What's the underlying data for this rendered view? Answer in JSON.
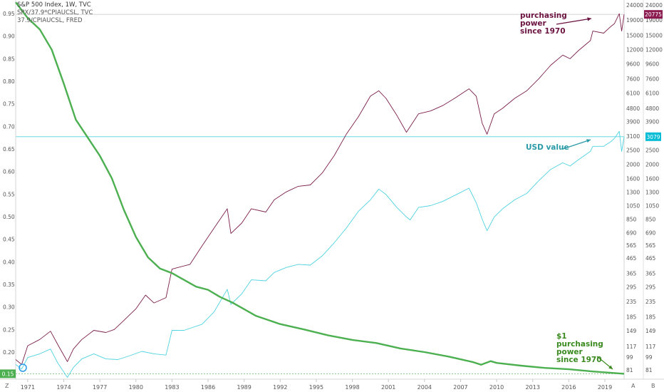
{
  "legend": {
    "line1": "S&P 500 Index, 1W, TVC",
    "line2": "SPX/37.9*CPIAUCSL, TVC",
    "line3": "37.9/CPIAUCSL, FRED"
  },
  "annotations": {
    "purchasing_power": [
      "purchasing",
      "power",
      "since 1970"
    ],
    "usd_value": "USD value",
    "dollar_pp": [
      "$1",
      "purchasing",
      "power",
      "since 1970"
    ]
  },
  "corner": {
    "left": "Z",
    "axis_a": "A",
    "axis_b": "B"
  },
  "colors": {
    "spx": "#7b1f4a",
    "real": "#4fd3e0",
    "dollar": "#4caf50",
    "spx_badge": "#8b1a4f",
    "real_badge": "#00bcd4",
    "dollar_badge": "#4caf50"
  },
  "chart_data": {
    "type": "line",
    "x_ticks": [
      "1971",
      "1974",
      "1977",
      "1980",
      "1983",
      "1986",
      "1989",
      "1992",
      "1995",
      "1998",
      "2001",
      "2004",
      "2007",
      "2010",
      "2013",
      "2016",
      "2019"
    ],
    "x_range": [
      1970.0,
      2020.6
    ],
    "left_axis": {
      "ticks": [
        "0.95",
        "0.90",
        "0.85",
        "0.80",
        "0.75",
        "0.70",
        "0.65",
        "0.60",
        "0.55",
        "0.50",
        "0.45",
        "0.40",
        "0.35",
        "0.30",
        "0.25",
        "0.20",
        "0.15"
      ],
      "range": [
        0.14,
        0.98
      ]
    },
    "right_axis_a": {
      "scale": "log",
      "ticks": [
        "24000",
        "19000",
        "15000",
        "12000",
        "9600",
        "7600",
        "6100",
        "4800",
        "3900",
        "3100",
        "2500",
        "2000",
        "1600",
        "1300",
        "1050",
        "850",
        "690",
        "565",
        "465",
        "365",
        "295",
        "235",
        "185",
        "149",
        "117",
        "99",
        "81"
      ]
    },
    "right_axis_b": {
      "scale": "log",
      "ticks": [
        "24000",
        "19000",
        "15000",
        "12000",
        "9600",
        "7600",
        "6100",
        "4800",
        "3900",
        "3100",
        "2500",
        "2000",
        "1600",
        "1300",
        "1050",
        "850",
        "690",
        "565",
        "465",
        "365",
        "295",
        "235",
        "185",
        "149",
        "117",
        "99",
        "81"
      ]
    },
    "series": [
      {
        "name": "S&P 500 Index, 1W, TVC",
        "axis": "right",
        "last_value": "20775",
        "x": [
          1970.0,
          1970.5,
          1971.0,
          1972.0,
          1972.9,
          1973.5,
          1974.3,
          1974.8,
          1975.5,
          1976.5,
          1977.5,
          1978.2,
          1979.0,
          1980.0,
          1980.8,
          1981.5,
          1982.5,
          1983.0,
          1983.5,
          1984.5,
          1985.5,
          1986.5,
          1987.6,
          1987.9,
          1988.8,
          1989.6,
          1990.8,
          1991.5,
          1992.5,
          1993.5,
          1994.5,
          1995.5,
          1996.5,
          1997.5,
          1998.5,
          1999.5,
          2000.2,
          2000.8,
          2001.7,
          2002.5,
          2002.8,
          2003.5,
          2004.5,
          2005.5,
          2006.5,
          2007.7,
          2008.3,
          2008.8,
          2009.2,
          2009.8,
          2010.5,
          2011.5,
          2012.5,
          2013.5,
          2014.5,
          2015.5,
          2016.1,
          2016.8,
          2017.8,
          2018.0,
          2018.9,
          2019.5,
          2019.8,
          2020.2,
          2020.4,
          2020.6
        ],
        "y": [
          95,
          88,
          118,
          130,
          148,
          120,
          92,
          112,
          130,
          150,
          145,
          152,
          175,
          210,
          260,
          230,
          250,
          390,
          400,
          420,
          560,
          740,
          1000,
          680,
          800,
          1000,
          950,
          1150,
          1300,
          1420,
          1450,
          1750,
          2300,
          3200,
          4200,
          5800,
          6300,
          5600,
          4300,
          3300,
          3600,
          4400,
          4600,
          5000,
          5600,
          6500,
          5800,
          3800,
          3200,
          4400,
          4800,
          5600,
          6300,
          7600,
          9400,
          11000,
          10400,
          11800,
          13800,
          16000,
          15500,
          17200,
          18000,
          21000,
          16000,
          20775
        ]
      },
      {
        "name": "SPX/37.9*CPIAUCSL, TVC",
        "axis": "right",
        "last_value": "3079",
        "x": [
          1970.0,
          1970.5,
          1971.0,
          1972.0,
          1972.9,
          1973.5,
          1974.3,
          1974.8,
          1975.5,
          1976.5,
          1977.5,
          1978.5,
          1979.5,
          1980.5,
          1981.5,
          1982.5,
          1983.0,
          1984.0,
          1985.5,
          1986.5,
          1987.6,
          1987.9,
          1988.8,
          1989.6,
          1990.8,
          1991.5,
          1992.5,
          1993.5,
          1994.5,
          1995.5,
          1996.5,
          1997.5,
          1998.5,
          1999.5,
          2000.2,
          2000.8,
          2001.7,
          2002.5,
          2002.8,
          2003.5,
          2004.5,
          2005.5,
          2006.5,
          2007.7,
          2008.3,
          2008.8,
          2009.2,
          2009.8,
          2010.5,
          2011.5,
          2012.5,
          2013.5,
          2014.5,
          2015.5,
          2016.1,
          2016.8,
          2017.8,
          2018.0,
          2018.9,
          2019.5,
          2019.8,
          2020.2,
          2020.4,
          2020.6
        ],
        "y": [
          88,
          82,
          98,
          104,
          112,
          90,
          72,
          84,
          96,
          104,
          96,
          95,
          101,
          108,
          104,
          102,
          150,
          150,
          165,
          200,
          285,
          225,
          265,
          330,
          325,
          370,
          400,
          420,
          415,
          480,
          590,
          740,
          960,
          1150,
          1360,
          1250,
          1020,
          880,
          840,
          1020,
          1050,
          1120,
          1230,
          1380,
          1100,
          850,
          710,
          880,
          1000,
          1150,
          1270,
          1550,
          1850,
          2050,
          1950,
          2150,
          2450,
          2650,
          2650,
          2850,
          3000,
          3350,
          2450,
          3079
        ]
      },
      {
        "name": "37.9/CPIAUCSL, FRED",
        "axis": "left",
        "last_value": "0.15",
        "x": [
          1970.0,
          1971.0,
          1972.0,
          1973.0,
          1974.0,
          1975.0,
          1976.0,
          1977.0,
          1978.0,
          1979.0,
          1980.0,
          1981.0,
          1982.0,
          1983.0,
          1984.0,
          1985.0,
          1986.0,
          1987.0,
          1988.0,
          1989.0,
          1990.0,
          1992.0,
          1994.0,
          1996.0,
          1998.0,
          2000.0,
          2002.0,
          2004.0,
          2006.0,
          2008.0,
          2008.7,
          2009.5,
          2010.0,
          2012.0,
          2014.0,
          2016.0,
          2018.0,
          2020.6
        ],
        "y": [
          0.975,
          0.94,
          0.915,
          0.87,
          0.795,
          0.715,
          0.675,
          0.635,
          0.585,
          0.515,
          0.455,
          0.41,
          0.385,
          0.375,
          0.36,
          0.345,
          0.338,
          0.322,
          0.31,
          0.295,
          0.28,
          0.262,
          0.25,
          0.237,
          0.227,
          0.22,
          0.208,
          0.2,
          0.19,
          0.178,
          0.172,
          0.18,
          0.176,
          0.17,
          0.165,
          0.162,
          0.157,
          0.152
        ]
      }
    ]
  }
}
